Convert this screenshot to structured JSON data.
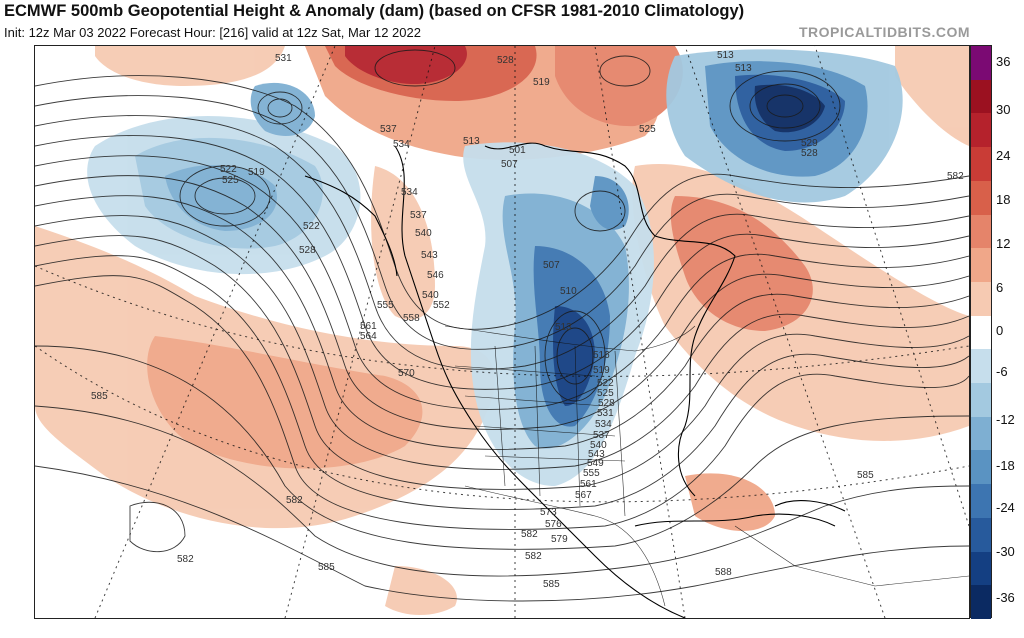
{
  "title": "ECMWF 500mb Geopotential Height & Anomaly (dam) (based on CFSR 1981-2010 Climatology)",
  "subtitle": "Init: 12z Mar 03 2022   Forecast Hour: [216]   valid at 12z Sat, Mar 12 2022",
  "brand": "TROPICALTIDBITS.COM",
  "colorbar": {
    "ticks": [
      "36",
      "30",
      "24",
      "18",
      "12",
      "6",
      "0",
      "-6",
      "-12",
      "-18",
      "-24",
      "-30",
      "-36"
    ],
    "colors": [
      "#7b0a73",
      "#9b1120",
      "#b5222c",
      "#c93c36",
      "#d8604a",
      "#e5846a",
      "#f0a789",
      "#f6cab2",
      "#ffffff",
      "#c6deec",
      "#a3c9e0",
      "#7eafd2",
      "#5a93c2",
      "#3d75b1",
      "#275a9c",
      "#143f82",
      "#0b2a62"
    ]
  },
  "contour_labels": [
    "531",
    "528",
    "519",
    "537",
    "534",
    "525",
    "513",
    "501",
    "507",
    "513",
    "513",
    "529",
    "528",
    "522",
    "525",
    "519",
    "522",
    "528",
    "534",
    "537",
    "540",
    "543",
    "546",
    "540",
    "552",
    "555",
    "558",
    "561",
    "564",
    "570",
    "507",
    "510",
    "513",
    "516",
    "519",
    "522",
    "525",
    "528",
    "531",
    "534",
    "537",
    "540",
    "543",
    "549",
    "555",
    "561",
    "567",
    "573",
    "576",
    "579",
    "582",
    "585",
    "588",
    "582",
    "582",
    "585",
    "585",
    "585",
    "582",
    "582"
  ],
  "colors": {
    "frame": "#222222",
    "brand": "#9a9a9a"
  }
}
